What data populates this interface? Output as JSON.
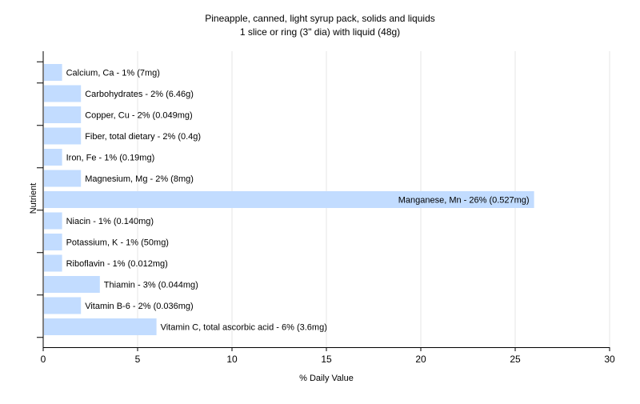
{
  "chart_data": {
    "type": "bar",
    "orientation": "horizontal",
    "title": "Pineapple, canned, light syrup pack, solids and liquids",
    "subtitle": "1 slice or ring (3\" dia) with liquid (48g)",
    "xlabel": "% Daily Value",
    "ylabel": "Nutrient",
    "xlim": [
      0,
      30
    ],
    "xticks": [
      0,
      5,
      10,
      15,
      20,
      25,
      30
    ],
    "grid": true,
    "categories": [
      "Calcium, Ca",
      "Carbohydrates",
      "Copper, Cu",
      "Fiber, total dietary",
      "Iron, Fe",
      "Magnesium, Mg",
      "Manganese, Mn",
      "Niacin",
      "Potassium, K",
      "Riboflavin",
      "Thiamin",
      "Vitamin B-6",
      "Vitamin C, total ascorbic acid"
    ],
    "values": [
      1,
      2,
      2,
      2,
      1,
      2,
      26,
      1,
      1,
      1,
      3,
      2,
      6
    ],
    "labels": [
      "Calcium, Ca - 1% (7mg)",
      "Carbohydrates - 2% (6.46g)",
      "Copper, Cu - 2% (0.049mg)",
      "Fiber, total dietary - 2% (0.4g)",
      "Iron, Fe - 1% (0.19mg)",
      "Magnesium, Mg - 2% (8mg)",
      "Manganese, Mn - 26% (0.527mg)",
      "Niacin - 1% (0.140mg)",
      "Potassium, K - 1% (50mg)",
      "Riboflavin - 1% (0.012mg)",
      "Thiamin - 3% (0.044mg)",
      "Vitamin B-6 - 2% (0.036mg)",
      "Vitamin C, total ascorbic acid - 6% (3.6mg)"
    ],
    "colors": {
      "bar": "#c2dcff",
      "grid": "#e4e4e4",
      "axis": "#000000",
      "text": "#000000"
    }
  }
}
